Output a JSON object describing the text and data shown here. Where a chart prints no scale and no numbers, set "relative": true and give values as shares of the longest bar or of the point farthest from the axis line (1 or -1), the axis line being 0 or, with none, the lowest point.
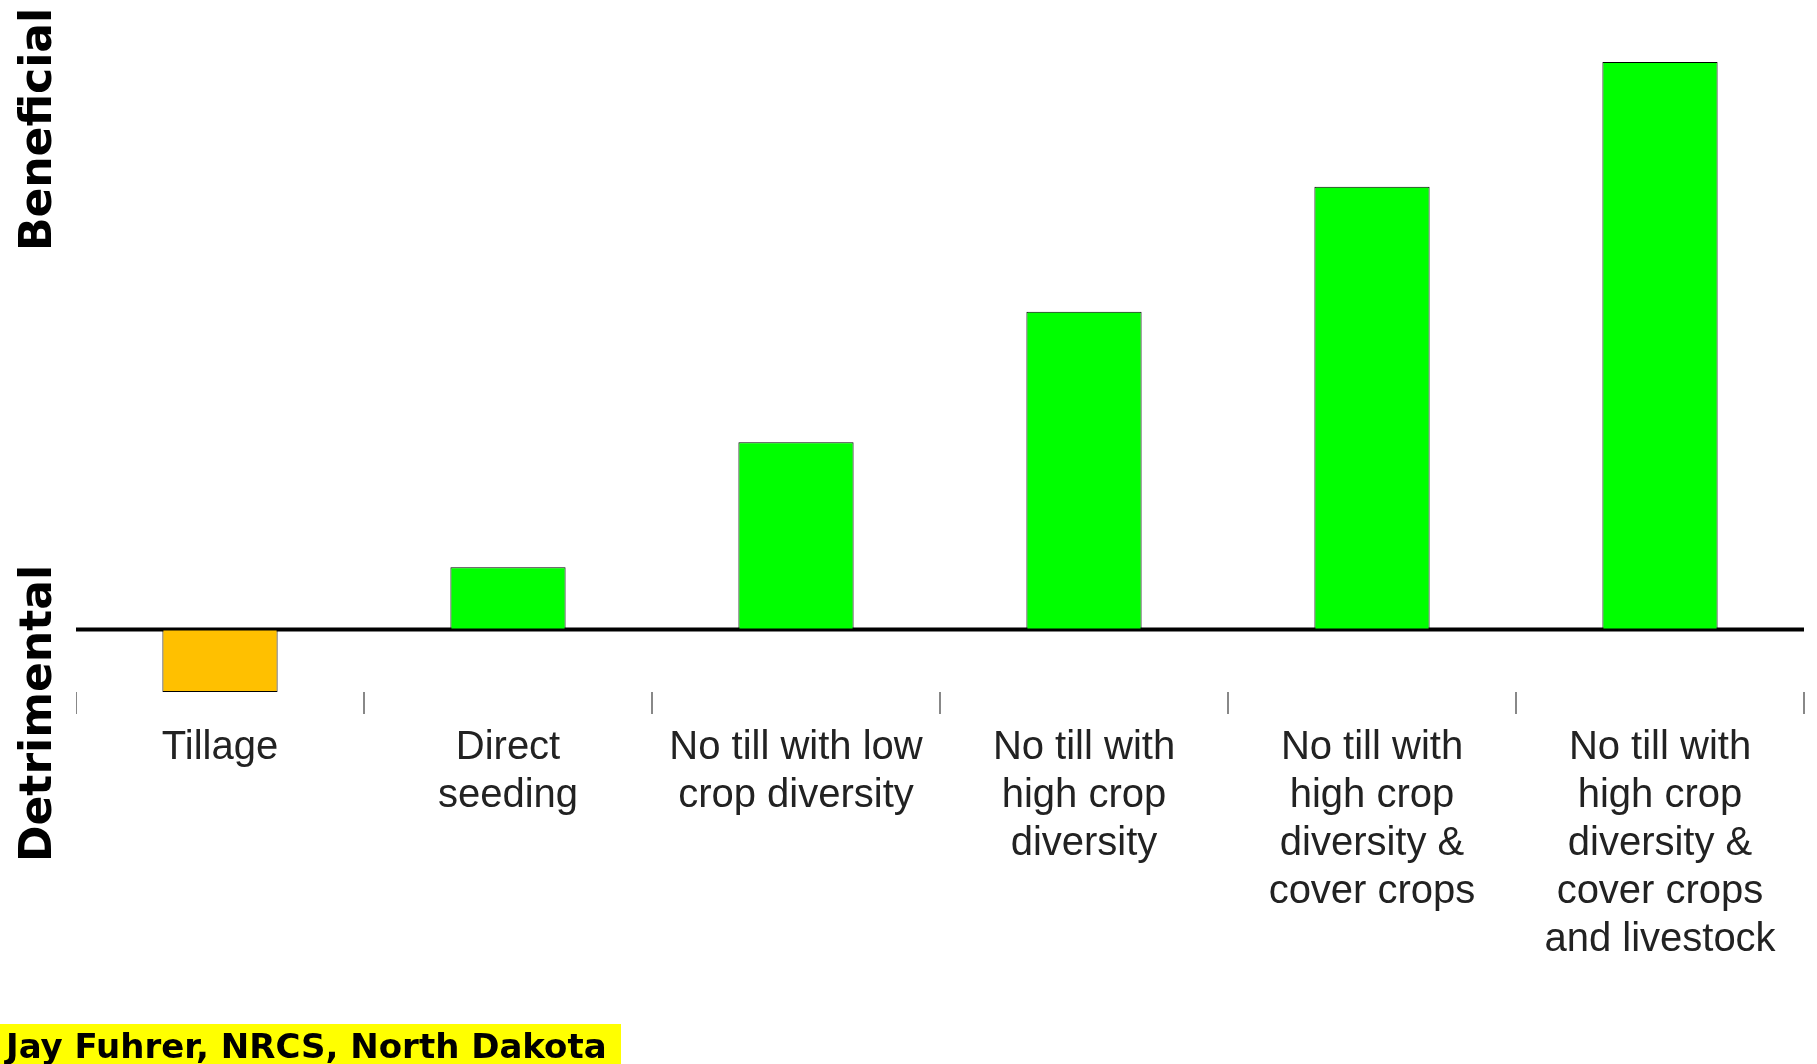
{
  "chart_data": {
    "type": "bar",
    "relative": true,
    "categories": [
      "Tillage",
      "Direct seeding",
      "No till with low crop diversity",
      "No till with high crop diversity",
      "No till with high crop diversity & cover crops",
      "No till with high crop diversity & cover crops and livestock"
    ],
    "values": [
      -0.11,
      0.11,
      0.33,
      0.56,
      0.78,
      1
    ],
    "colors": [
      "#ffc000",
      "#00ff00",
      "#00ff00",
      "#00ff00",
      "#00ff00",
      "#00ff00"
    ],
    "annotations": [
      "Beneficial",
      "Detrimental",
      "Jay Fuhrer, NRCS, North Dakota"
    ],
    "grid": false,
    "legend": false
  }
}
